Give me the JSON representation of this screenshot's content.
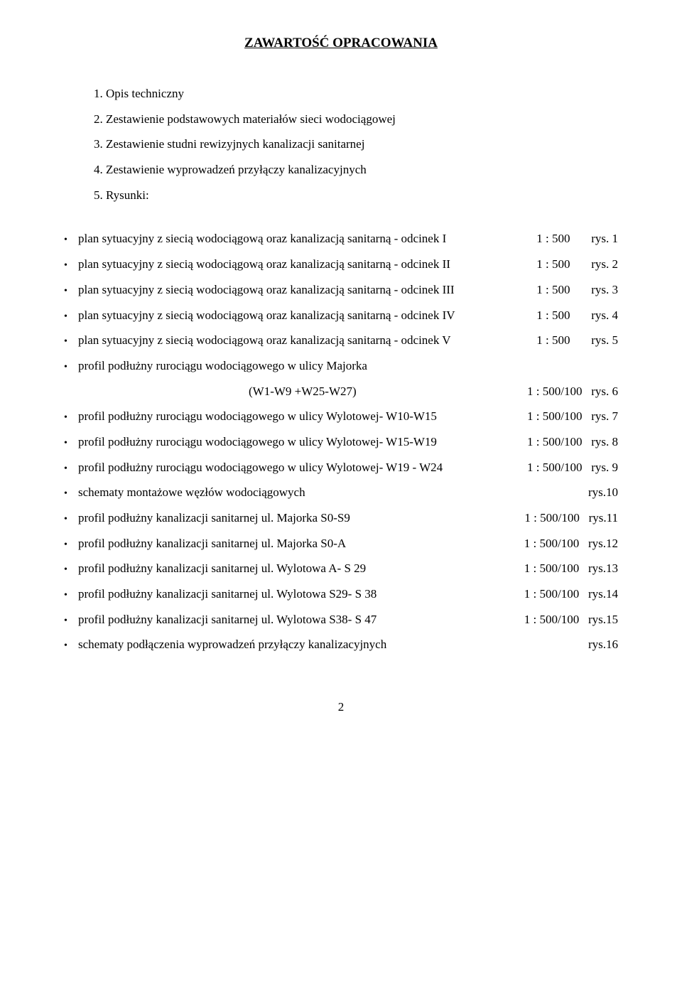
{
  "title": "ZAWARTOŚĆ  OPRACOWANIA",
  "numbered": [
    "1. Opis techniczny",
    "2. Zestawienie podstawowych materiałów sieci wodociągowej",
    "3. Zestawienie studni rewizyjnych kanalizacji sanitarnej",
    "4. Zestawienie wyprowadzeń przyłączy kanalizacyjnych",
    "5. Rysunki:"
  ],
  "bullets": [
    {
      "text": "plan sytuacyjny z  siecią wodociągową oraz kanalizacją sanitarną - odcinek I",
      "scale": "1 : 500       rys. 1"
    },
    {
      "text": "plan sytuacyjny z  siecią wodociągową oraz kanalizacją sanitarną - odcinek II",
      "scale": "1 : 500       rys. 2"
    },
    {
      "text": "plan sytuacyjny z  siecią wodociągową oraz kanalizacją sanitarną - odcinek III",
      "scale": "1 : 500       rys. 3"
    },
    {
      "text": "plan sytuacyjny z  siecią wodociągową oraz kanalizacją sanitarną - odcinek IV",
      "scale": "1 : 500       rys. 4"
    },
    {
      "text": "plan sytuacyjny z  siecią wodociągową oraz kanalizacją sanitarną  - odcinek V",
      "scale": "1 : 500       rys. 5"
    },
    {
      "text": "profil podłużny rurociągu  wodociągowego w ulicy Majorka",
      "scale": ""
    }
  ],
  "subline": {
    "text": "(W1-W9 +W25-W27)",
    "scale": "1 : 500/100   rys. 6"
  },
  "bullets2": [
    {
      "text": "profil podłużny rurociągu  wodociągowego w ulicy Wylotowej- W10-W15",
      "scale": "1 : 500/100   rys. 7"
    },
    {
      "text": "profil podłużny rurociągu  wodociągowego w ulicy Wylotowej- W15-W19",
      "scale": "1 : 500/100   rys. 8"
    },
    {
      "text": "profil podłużny rurociągu  wodociągowego w ulicy Wylotowej- W19 - W24",
      "scale": "1 : 500/100   rys. 9"
    },
    {
      "text": "schematy montażowe węzłów wodociągowych",
      "scale": "rys.10"
    },
    {
      "text": "profil podłużny kanalizacji sanitarnej  ul. Majorka S0-S9",
      "scale": "1 : 500/100   rys.11"
    },
    {
      "text": "profil podłużny kanalizacji sanitarnej  ul. Majorka S0-A",
      "scale": "1 : 500/100   rys.12"
    },
    {
      "text": "profil podłużny kanalizacji sanitarnej ul. Wylotowa  A- S 29",
      "scale": "1 : 500/100   rys.13"
    },
    {
      "text": "profil podłużny kanalizacji sanitarnej ul. Wylotowa  S29- S 38",
      "scale": "1 : 500/100   rys.14"
    },
    {
      "text": "profil podłużny kanalizacji sanitarnej ul. Wylotowa  S38- S 47",
      "scale": "1 : 500/100   rys.15"
    },
    {
      "text": "schematy  podłączenia wyprowadzeń przyłączy kanalizacyjnych",
      "scale": "rys.16"
    }
  ],
  "pageNumber": "2"
}
